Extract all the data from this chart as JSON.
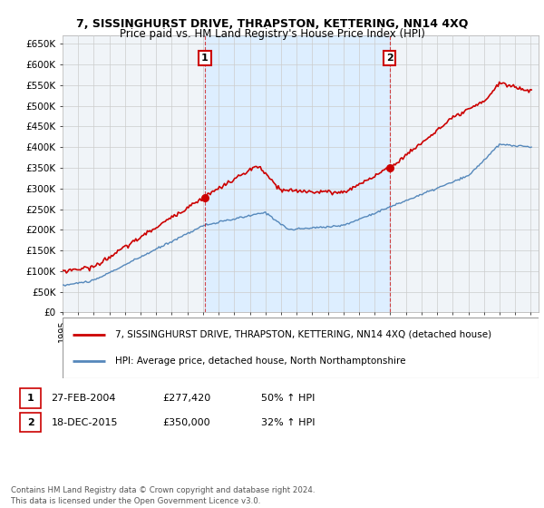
{
  "title": "7, SISSINGHURST DRIVE, THRAPSTON, KETTERING, NN14 4XQ",
  "subtitle": "Price paid vs. HM Land Registry's House Price Index (HPI)",
  "ylabel_ticks": [
    "£0",
    "£50K",
    "£100K",
    "£150K",
    "£200K",
    "£250K",
    "£300K",
    "£350K",
    "£400K",
    "£450K",
    "£500K",
    "£550K",
    "£600K",
    "£650K"
  ],
  "ytick_values": [
    0,
    50000,
    100000,
    150000,
    200000,
    250000,
    300000,
    350000,
    400000,
    450000,
    500000,
    550000,
    600000,
    650000
  ],
  "ylim": [
    0,
    670000
  ],
  "xlim": [
    1995,
    2025.5
  ],
  "transaction1": {
    "date_x": 2004.12,
    "price": 277420,
    "label": "1"
  },
  "transaction2": {
    "date_x": 2015.96,
    "price": 350000,
    "label": "2"
  },
  "legend_line1": "7, SISSINGHURST DRIVE, THRAPSTON, KETTERING, NN14 4XQ (detached house)",
  "legend_line2": "HPI: Average price, detached house, North Northamptonshire",
  "table_row1": [
    "1",
    "27-FEB-2004",
    "£277,420",
    "50% ↑ HPI"
  ],
  "table_row2": [
    "2",
    "18-DEC-2015",
    "£350,000",
    "32% ↑ HPI"
  ],
  "footnote": "Contains HM Land Registry data © Crown copyright and database right 2024.\nThis data is licensed under the Open Government Licence v3.0.",
  "red_color": "#cc0000",
  "blue_color": "#5588bb",
  "fill_color": "#ddeeff",
  "grid_color": "#cccccc",
  "bg_color": "#ffffff",
  "plot_bg_color": "#f0f4f8"
}
